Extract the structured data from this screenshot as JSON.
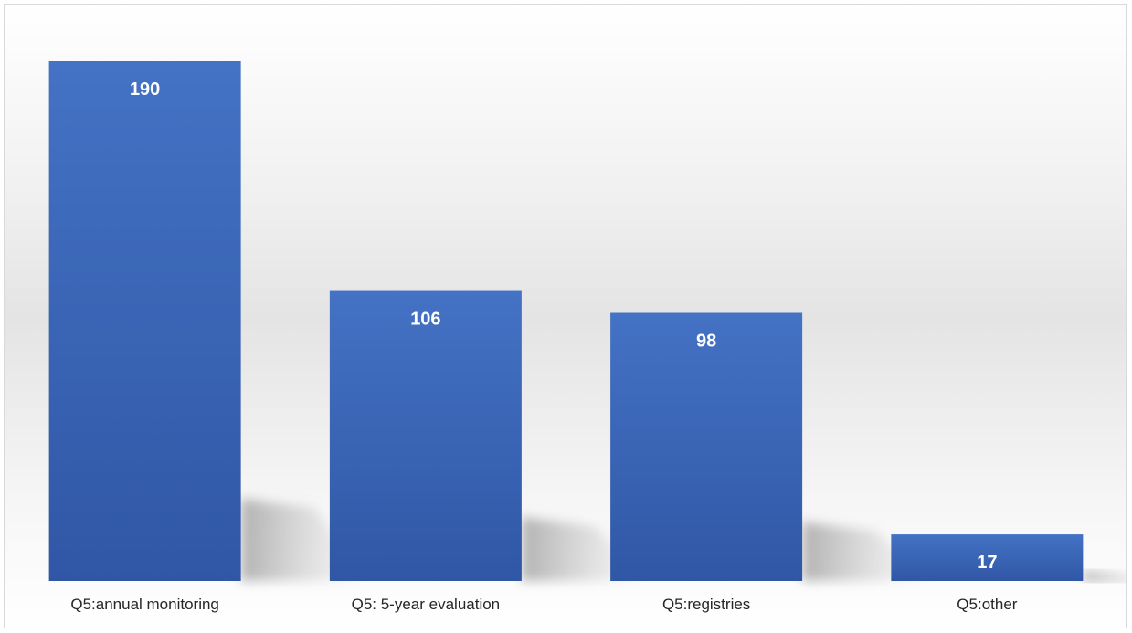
{
  "chart_data": {
    "type": "bar",
    "title": "",
    "xlabel": "",
    "ylabel": "",
    "categories": [
      "Q5:annual monitoring",
      "Q5: 5-year evaluation",
      "Q5:registries",
      "Q5:other"
    ],
    "values": [
      190,
      106,
      98,
      17
    ],
    "ylim": [
      0,
      190
    ],
    "grid": false,
    "legend": "none",
    "data_labels": "inside-top",
    "colors": {
      "bar_top": "#4472c4",
      "bar_bottom": "#3057a6",
      "label": "#ffffff",
      "category_text": "#262626",
      "background_gradient_mid": "#e6e6e6",
      "border": "#d9d9d9"
    }
  }
}
